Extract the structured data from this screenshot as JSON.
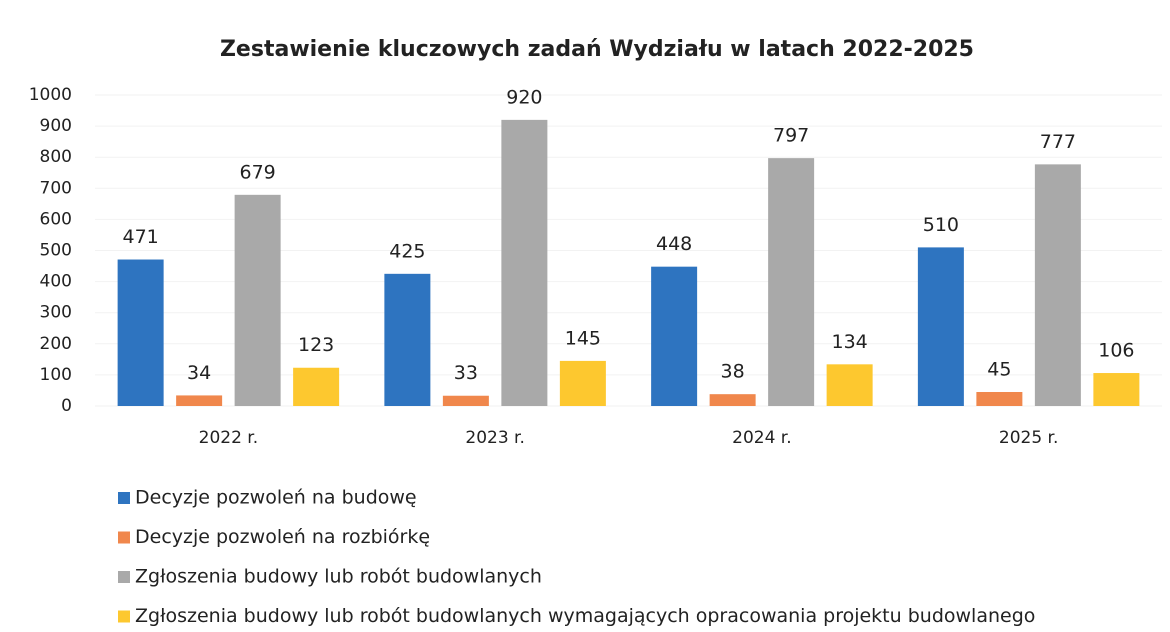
{
  "chart_data": {
    "type": "bar",
    "title": "Zestawienie kluczowych zadań Wydziału w latach 2022-2025",
    "categories": [
      "2022 r.",
      "2023 r.",
      "2024 r.",
      "2025 r."
    ],
    "series": [
      {
        "name": "Decyzje pozwoleń na budowę",
        "color": "#2e74c0",
        "values": [
          471,
          425,
          448,
          510
        ]
      },
      {
        "name": "Decyzje pozwoleń na rozbiórkę",
        "color": "#f0874c",
        "values": [
          34,
          33,
          38,
          45
        ]
      },
      {
        "name": "Zgłoszenia budowy lub robót budowlanych",
        "color": "#a9a9a9",
        "values": [
          679,
          920,
          797,
          777
        ]
      },
      {
        "name": "Zgłoszenia budowy lub robót budowlanych wymagających opracowania projektu budowlanego",
        "color": "#fdc82f",
        "values": [
          123,
          145,
          134,
          106
        ]
      }
    ],
    "ylim": [
      0,
      1000
    ],
    "yticks": [
      0,
      100,
      200,
      300,
      400,
      500,
      600,
      700,
      800,
      900,
      1000
    ],
    "legend": "bottom"
  }
}
